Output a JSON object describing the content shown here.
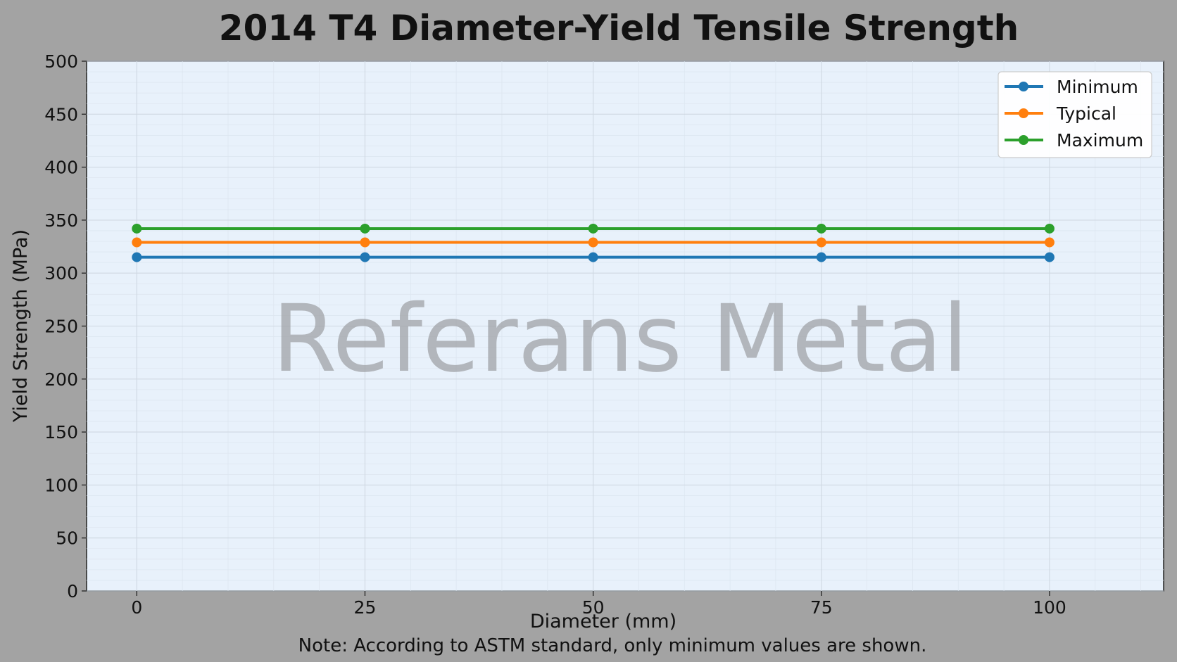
{
  "chart_data": {
    "type": "line",
    "title": "2014 T4 Diameter-Yield Tensile Strength",
    "xlabel": "Diameter (mm)",
    "ylabel": "Yield Strength (MPa)",
    "x": [
      0,
      25,
      50,
      75,
      100
    ],
    "x_ticks": [
      0,
      25,
      50,
      75,
      100
    ],
    "y_ticks": [
      0,
      50,
      100,
      150,
      200,
      250,
      300,
      350,
      400,
      450,
      500
    ],
    "xlim": [
      -5.5,
      112.5
    ],
    "ylim": [
      0,
      500
    ],
    "grid": true,
    "legend_position": "top-right",
    "series": [
      {
        "name": "Minimum",
        "color": "#1f77b4",
        "values": [
          315,
          315,
          315,
          315,
          315
        ]
      },
      {
        "name": "Typical",
        "color": "#ff7f0e",
        "values": [
          329,
          329,
          329,
          329,
          329
        ]
      },
      {
        "name": "Maximum",
        "color": "#2ca02c",
        "values": [
          342,
          342,
          342,
          342,
          342
        ]
      }
    ],
    "note": "Note: According to ASTM standard, only minimum values are shown.",
    "watermark": "Referans Metal"
  },
  "colors": {
    "page_background": "#a3a3a3",
    "plot_background": "#e8f1fb",
    "grid": "#cfd8e2"
  }
}
